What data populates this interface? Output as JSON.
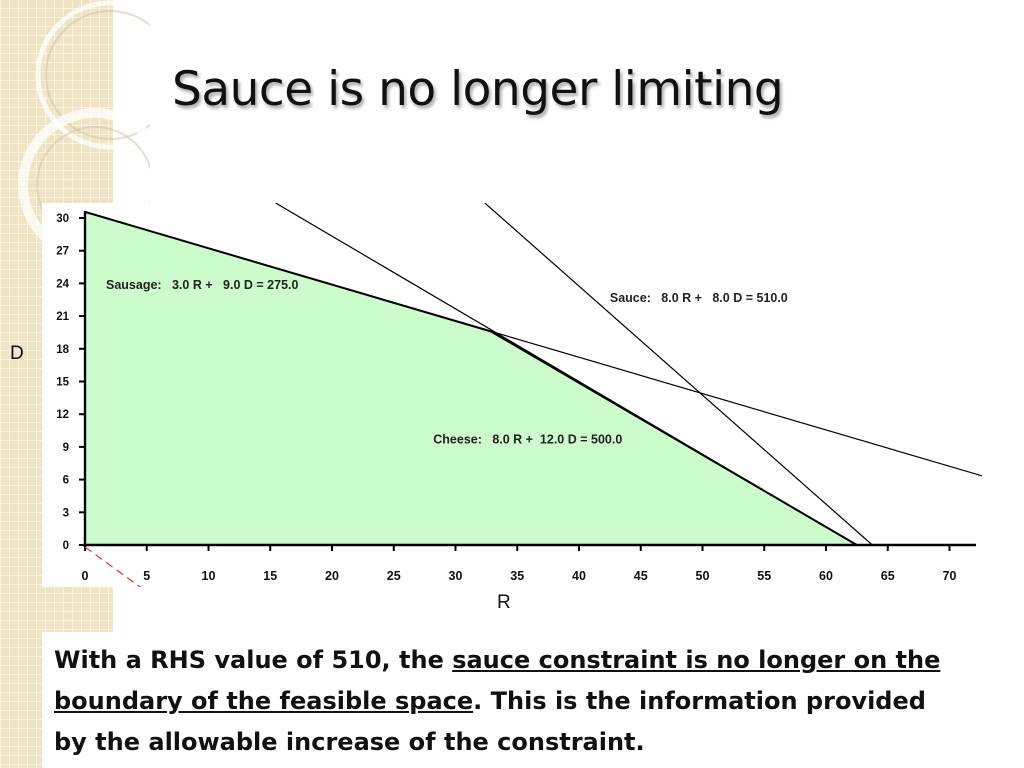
{
  "slide": {
    "title": "Sauce is no longer limiting"
  },
  "caption": {
    "part1": "With a RHS value of 510, the ",
    "underlined": "sauce constraint is no longer on the boundary of the feasible space",
    "part2": ". This is the information provided by the allowable increase of the constraint."
  },
  "chart_data": {
    "type": "line",
    "xlabel": "R",
    "ylabel": "D",
    "xlim": [
      0,
      72
    ],
    "ylim": [
      0,
      31
    ],
    "x_ticks": [
      "0",
      "5",
      "10",
      "15",
      "20",
      "25",
      "30",
      "35",
      "40",
      "45",
      "50",
      "55",
      "60",
      "65",
      "70"
    ],
    "y_ticks": [
      "0",
      "3",
      "6",
      "9",
      "12",
      "15",
      "18",
      "21",
      "24",
      "27",
      "30"
    ],
    "constraints": [
      {
        "name": "Sausage",
        "label": "Sausage:   3.0 R +   9.0 D = 275.0",
        "a": 3.0,
        "b": 9.0,
        "rhs": 275.0
      },
      {
        "name": "Sauce",
        "label": "Sauce:   8.0 R +   8.0 D = 510.0",
        "a": 8.0,
        "b": 8.0,
        "rhs": 510.0
      },
      {
        "name": "Cheese",
        "label": "Cheese:   8.0 R +  12.0 D = 500.0",
        "a": 8.0,
        "b": 12.0,
        "rhs": 500.0
      }
    ],
    "feasible_region": [
      [
        0,
        0
      ],
      [
        0,
        30.56
      ],
      [
        32.86,
        19.6
      ],
      [
        62.5,
        0
      ]
    ],
    "colors": {
      "feasible_fill": "#ccfccc",
      "line": "#000000",
      "objective_dash": "#e03030"
    }
  }
}
